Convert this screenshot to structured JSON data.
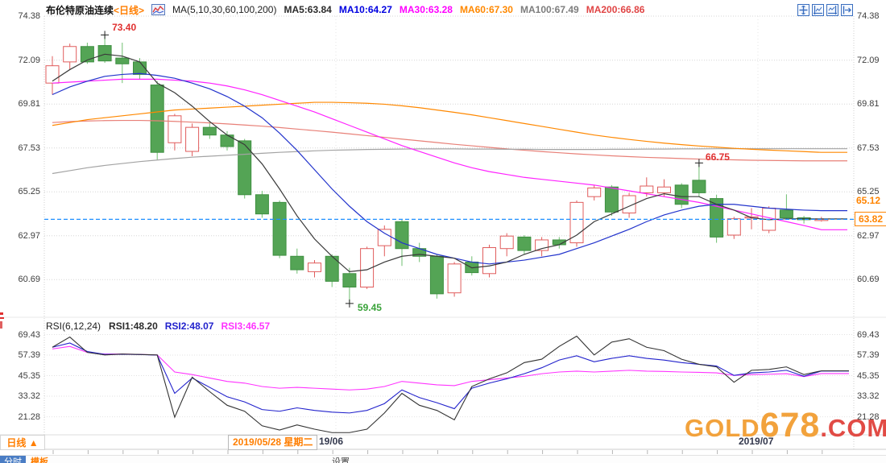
{
  "header": {
    "title": "布伦特原油连续",
    "period_tag": "<日线>",
    "ma_settings": "MA(5,10,30,60,100,200)",
    "ma_values": [
      {
        "name": "MA5",
        "label": "MA5:63.84",
        "color": "#2b2b2b"
      },
      {
        "name": "MA10",
        "label": "MA10:64.27",
        "color": "#0000e0"
      },
      {
        "name": "MA30",
        "label": "MA30:63.28",
        "color": "#ff00ff"
      },
      {
        "name": "MA60",
        "label": "MA60:67.30",
        "color": "#ff8800"
      },
      {
        "name": "MA100",
        "label": "MA100:67.49",
        "color": "#7d7d7d"
      },
      {
        "name": "MA200",
        "label": "MA200:66.86",
        "color": "#e04545"
      }
    ],
    "toolbar_icons": [
      "crosshair-move-icon",
      "left-axis-chart-icon",
      "right-axis-chart-icon",
      "exit-right-icon"
    ]
  },
  "rsi_header": {
    "settings": "RSI(6,12,24)",
    "values": [
      {
        "name": "RSI1",
        "label": "RSI1:48.20",
        "color": "#2b2b2b"
      },
      {
        "name": "RSI2",
        "label": "RSI2:48.07",
        "color": "#2222cc"
      },
      {
        "name": "RSI3",
        "label": "RSI3:46.57",
        "color": "#ff33ff"
      }
    ]
  },
  "annotations": {
    "high_label": "73.40",
    "low_label": "59.45",
    "swing_high_label": "66.75",
    "session_high_label": "65.12",
    "last_price_label": "63.82"
  },
  "footer": {
    "period_tab": "日线 ▲",
    "crosshair_date": "2019/05/28 星期二",
    "month_label_1": "19/06",
    "month_label_2": "2019/07",
    "partial_tabs": [
      "分时",
      "模板",
      "设置"
    ]
  },
  "watermark": {
    "part1": "GOLD",
    "part2": "678",
    "part3": ".COM"
  },
  "colors": {
    "accent_orange": "#ff7e00",
    "candle_up": "#e05c5c",
    "candle_down_fill": "#54a455",
    "candle_down_border": "#3e8f40",
    "last_price_line": "#1f8fff",
    "grid": "#d6d6d6",
    "annotation_red": "#e03030",
    "annotation_green": "#3aa33a"
  },
  "chart_data": {
    "type": "candlestick",
    "title": "布伦特原油连续 日线 (Brent crude oil continuous, daily)",
    "price_axis": {
      "tick_labels": [
        "74.38",
        "72.09",
        "69.81",
        "67.53",
        "65.25",
        "62.97",
        "60.69"
      ],
      "tick_values": [
        74.38,
        72.09,
        69.81,
        67.53,
        65.25,
        62.97,
        60.69
      ],
      "range": [
        59.0,
        74.38
      ],
      "grid": "dotted"
    },
    "last_price": 63.82,
    "candles_ohlc": [
      [
        70.9,
        72.3,
        70.3,
        71.8
      ],
      [
        72.0,
        72.95,
        71.6,
        72.8
      ],
      [
        72.8,
        73.0,
        71.9,
        72.0
      ],
      [
        72.85,
        73.4,
        71.95,
        72.05
      ],
      [
        72.2,
        73.0,
        70.9,
        71.9
      ],
      [
        72.0,
        72.2,
        71.1,
        71.35
      ],
      [
        70.8,
        71.0,
        66.9,
        67.3
      ],
      [
        67.8,
        69.3,
        67.4,
        69.2
      ],
      [
        67.35,
        68.8,
        67.1,
        68.6
      ],
      [
        68.6,
        68.9,
        68.0,
        68.2
      ],
      [
        68.2,
        68.4,
        67.4,
        67.6
      ],
      [
        67.9,
        68.0,
        64.9,
        65.1
      ],
      [
        65.1,
        65.3,
        63.9,
        64.1
      ],
      [
        64.7,
        64.8,
        61.8,
        61.95
      ],
      [
        61.9,
        62.3,
        61.0,
        61.2
      ],
      [
        61.1,
        61.7,
        60.8,
        61.55
      ],
      [
        61.9,
        62.0,
        60.3,
        60.6
      ],
      [
        61.0,
        61.3,
        59.45,
        60.3
      ],
      [
        60.3,
        62.4,
        60.2,
        62.3
      ],
      [
        62.45,
        63.5,
        61.9,
        63.3
      ],
      [
        63.7,
        63.8,
        61.4,
        62.3
      ],
      [
        62.3,
        62.6,
        61.6,
        61.9
      ],
      [
        61.9,
        62.0,
        59.7,
        59.95
      ],
      [
        60.0,
        61.6,
        59.8,
        61.5
      ],
      [
        61.6,
        61.9,
        60.9,
        61.05
      ],
      [
        61.0,
        62.5,
        60.8,
        62.35
      ],
      [
        62.3,
        63.1,
        61.9,
        62.95
      ],
      [
        62.9,
        63.0,
        62.0,
        62.2
      ],
      [
        62.2,
        62.9,
        61.9,
        62.75
      ],
      [
        62.75,
        62.9,
        62.3,
        62.5
      ],
      [
        62.6,
        64.8,
        62.4,
        64.7
      ],
      [
        65.0,
        65.6,
        64.8,
        65.45
      ],
      [
        65.5,
        65.6,
        64.0,
        64.2
      ],
      [
        64.15,
        65.2,
        63.9,
        65.05
      ],
      [
        65.2,
        66.0,
        65.0,
        65.55
      ],
      [
        65.2,
        65.9,
        65.0,
        65.5
      ],
      [
        65.6,
        65.7,
        64.4,
        64.6
      ],
      [
        65.85,
        66.75,
        65.0,
        65.2
      ],
      [
        64.9,
        65.1,
        62.6,
        62.9
      ],
      [
        63.0,
        63.95,
        62.8,
        63.85
      ],
      [
        63.9,
        64.4,
        63.3,
        63.95
      ],
      [
        63.25,
        64.5,
        63.1,
        64.4
      ],
      [
        64.3,
        65.12,
        63.8,
        63.9
      ],
      [
        63.9,
        64.0,
        63.6,
        63.8
      ],
      [
        63.8,
        63.95,
        63.7,
        63.82
      ]
    ],
    "markers": [
      {
        "type": "session-high",
        "index": 3,
        "value": 73.4
      },
      {
        "type": "session-low",
        "index": 17,
        "value": 59.45
      },
      {
        "type": "swing-high",
        "index": 37,
        "value": 66.75
      }
    ],
    "ma_series": [
      {
        "name": "MA200",
        "color": "#e88078",
        "values": [
          68.85,
          68.9,
          68.93,
          68.95,
          68.96,
          68.96,
          68.94,
          68.91,
          68.87,
          68.83,
          68.78,
          68.72,
          68.66,
          68.59,
          68.51,
          68.43,
          68.35,
          68.26,
          68.17,
          68.08,
          67.99,
          67.9,
          67.81,
          67.72,
          67.64,
          67.56,
          67.48,
          67.41,
          67.34,
          67.28,
          67.22,
          67.17,
          67.12,
          67.08,
          67.04,
          67.01,
          66.98,
          66.95,
          66.93,
          66.91,
          66.89,
          66.88,
          66.87,
          66.86,
          66.86
        ]
      },
      {
        "name": "MA100",
        "color": "#a3a3a3",
        "values": [
          66.2,
          66.35,
          66.5,
          66.62,
          66.72,
          66.82,
          66.9,
          66.98,
          67.05,
          67.1,
          67.15,
          67.2,
          67.25,
          67.3,
          67.34,
          67.38,
          67.41,
          67.43,
          67.45,
          67.46,
          67.47,
          67.48,
          67.48,
          67.48,
          67.47,
          67.47,
          67.46,
          67.46,
          67.45,
          67.45,
          67.45,
          67.45,
          67.46,
          67.46,
          67.47,
          67.47,
          67.48,
          67.48,
          67.49,
          67.49,
          67.49,
          67.49,
          67.49,
          67.49,
          67.49
        ]
      },
      {
        "name": "MA60",
        "color": "#ff8800",
        "values": [
          68.7,
          68.85,
          69.0,
          69.1,
          69.2,
          69.3,
          69.4,
          69.5,
          69.55,
          69.6,
          69.65,
          69.7,
          69.75,
          69.8,
          69.85,
          69.9,
          69.9,
          69.88,
          69.85,
          69.8,
          69.72,
          69.62,
          69.5,
          69.38,
          69.25,
          69.1,
          68.95,
          68.8,
          68.65,
          68.5,
          68.35,
          68.2,
          68.08,
          67.97,
          67.87,
          67.78,
          67.7,
          67.63,
          67.57,
          67.51,
          67.46,
          67.42,
          67.38,
          67.34,
          67.3
        ]
      },
      {
        "name": "MA30",
        "color": "#ff22ff",
        "values": [
          70.9,
          70.95,
          71.0,
          71.05,
          71.1,
          71.1,
          71.1,
          71.05,
          71.0,
          70.9,
          70.75,
          70.55,
          70.3,
          70.0,
          69.7,
          69.4,
          69.05,
          68.7,
          68.35,
          68.0,
          67.65,
          67.35,
          67.05,
          66.75,
          66.5,
          66.3,
          66.15,
          66.0,
          65.9,
          65.8,
          65.7,
          65.6,
          65.45,
          65.3,
          65.15,
          65.0,
          64.85,
          64.7,
          64.5,
          64.3,
          64.1,
          63.9,
          63.7,
          63.5,
          63.28
        ]
      },
      {
        "name": "MA10",
        "color": "#2233cc",
        "values": [
          70.3,
          70.7,
          71.0,
          71.25,
          71.35,
          71.4,
          71.3,
          71.15,
          70.9,
          70.6,
          70.2,
          69.7,
          69.1,
          68.3,
          67.4,
          66.4,
          65.4,
          64.5,
          63.7,
          63.1,
          62.6,
          62.3,
          62.0,
          61.8,
          61.6,
          61.5,
          61.6,
          61.7,
          61.85,
          62.0,
          62.3,
          62.6,
          62.95,
          63.3,
          63.7,
          64.05,
          64.3,
          64.5,
          64.6,
          64.6,
          64.5,
          64.4,
          64.35,
          64.3,
          64.27
        ]
      },
      {
        "name": "MA5",
        "color": "#3a3a3a",
        "values": [
          71.0,
          71.6,
          72.1,
          72.4,
          72.3,
          72.0,
          70.9,
          70.4,
          69.7,
          68.9,
          68.2,
          67.7,
          66.7,
          65.4,
          64.0,
          62.8,
          61.9,
          61.1,
          61.2,
          61.6,
          61.9,
          62.0,
          61.9,
          61.8,
          61.3,
          61.4,
          61.6,
          62.0,
          62.3,
          62.5,
          63.0,
          63.7,
          64.1,
          64.5,
          64.9,
          65.15,
          65.0,
          65.0,
          64.6,
          64.3,
          63.9,
          63.8,
          63.85,
          63.85,
          63.84
        ]
      }
    ],
    "rsi_axis": {
      "tick_labels": [
        "69.43",
        "57.39",
        "45.35",
        "33.32",
        "21.28"
      ],
      "tick_values": [
        69.43,
        57.39,
        45.35,
        33.32,
        21.28
      ],
      "grid": "dotted"
    },
    "rsi_series": [
      {
        "name": "RSI3",
        "color": "#ff33ff",
        "values": [
          61,
          62.5,
          59,
          58,
          58,
          57.8,
          57.5,
          47.5,
          46,
          44,
          42,
          41,
          39,
          38,
          38.5,
          38,
          37.5,
          37,
          37.5,
          39,
          42,
          41,
          40,
          39.5,
          42,
          43,
          44,
          45,
          46.5,
          47.5,
          48,
          47.5,
          48,
          48.5,
          48,
          47.8,
          47.5,
          47.3,
          47,
          45.5,
          46,
          46.2,
          46.5,
          44.8,
          46.57
        ]
      },
      {
        "name": "RSI2",
        "color": "#2222cc",
        "values": [
          62,
          64.5,
          59.5,
          57.8,
          57.9,
          57.7,
          57.4,
          35,
          44,
          38.5,
          33,
          30,
          25.5,
          24.5,
          26.5,
          25,
          24,
          23.5,
          25,
          29,
          37,
          32.5,
          29.5,
          26,
          38,
          41,
          43.5,
          46.5,
          50,
          54.5,
          57,
          53.5,
          55.5,
          57,
          55.5,
          54.5,
          53,
          52,
          51,
          45.5,
          47,
          47.5,
          48.5,
          45,
          48.07
        ]
      },
      {
        "name": "RSI1",
        "color": "#333333",
        "values": [
          62,
          68,
          59,
          57.5,
          58,
          57.8,
          57.5,
          21,
          44.5,
          36,
          28,
          24.5,
          16,
          13.5,
          16.5,
          14,
          12,
          12,
          14,
          23.5,
          35,
          28,
          25,
          19.5,
          39,
          43.5,
          47,
          53,
          55,
          62.5,
          68.5,
          57.5,
          65,
          67,
          62,
          60,
          55,
          52,
          50.5,
          41.5,
          48.5,
          49,
          50.5,
          46,
          48.2
        ]
      }
    ],
    "x_axis": {
      "month_ticks": [
        "19/06",
        "2019/07"
      ],
      "crosshair_date": "2019/05/28 星期二"
    }
  }
}
